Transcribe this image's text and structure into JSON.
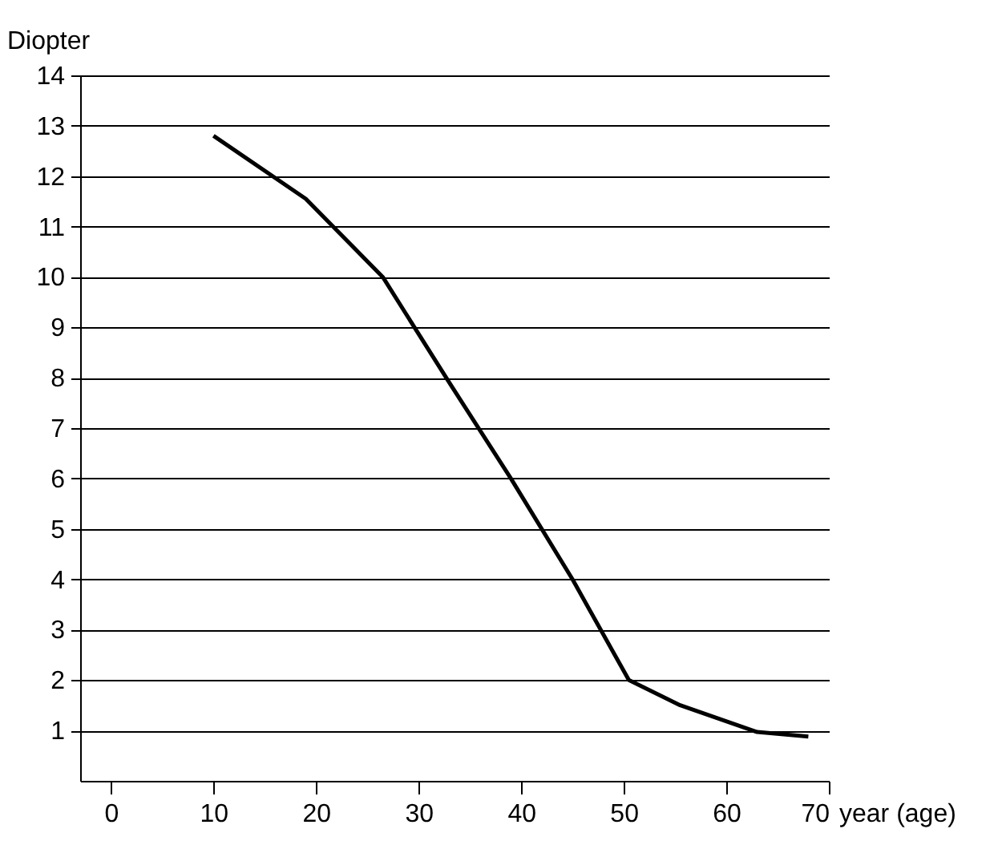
{
  "chart_data": {
    "type": "line",
    "xlabel": "year (age)",
    "ylabel": "Diopter",
    "x": [
      10,
      19,
      26.5,
      33,
      39,
      45,
      50.5,
      55.5,
      63,
      68
    ],
    "series": [
      {
        "color": "#000000",
        "values": [
          12.8,
          11.55,
          10,
          7.9,
          6,
          4,
          2,
          1.5,
          0.97,
          0.88
        ]
      }
    ],
    "xlim": [
      -3,
      70
    ],
    "ylim": [
      0,
      14
    ],
    "xticks": [
      0,
      10,
      20,
      30,
      40,
      50,
      60,
      70
    ],
    "yticks": [
      1,
      2,
      3,
      4,
      5,
      6,
      7,
      8,
      9,
      10,
      11,
      12,
      13,
      14
    ],
    "grid": "y",
    "legend": false,
    "marker": "none",
    "line_style": "solid"
  }
}
